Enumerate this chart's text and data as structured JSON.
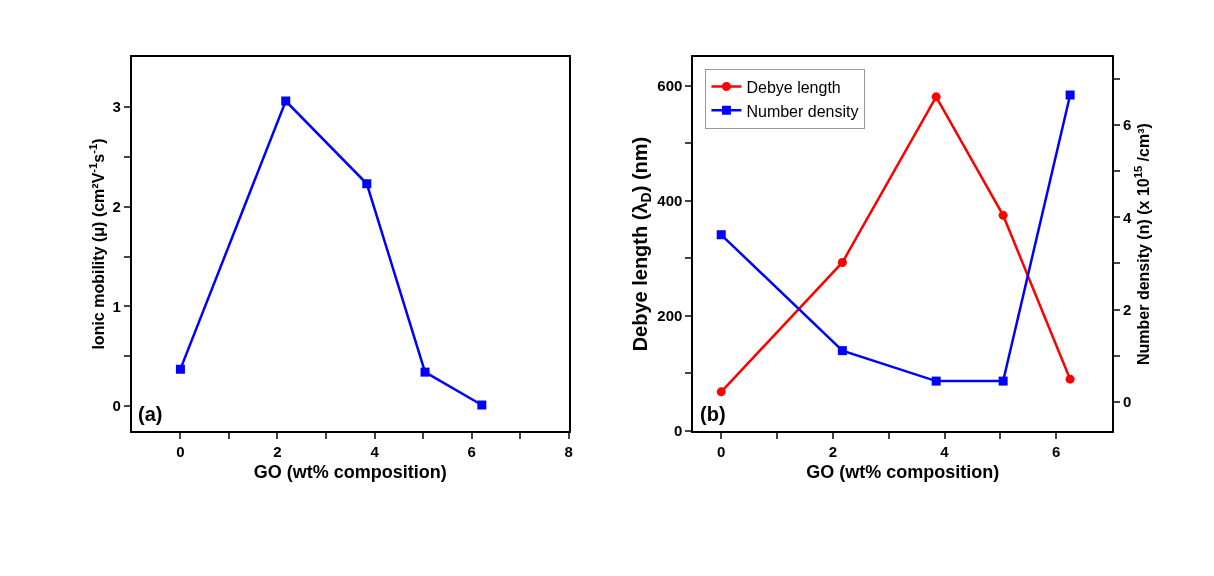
{
  "chart_data": [
    {
      "type": "line",
      "xlabel": "GO (wt% composition)",
      "ylabel": "Ionic mobility (μ) (cm²V$^{-1}$s$^{-1}$)",
      "annotations": [
        "(a)"
      ],
      "marker": "square",
      "line_style": "solid",
      "x": [
        0,
        2.17,
        3.84,
        5.04,
        6.21
      ],
      "series": [
        {
          "color": "#0000ff",
          "values": [
            0.37,
            3.06,
            2.23,
            0.34,
            0.01
          ]
        }
      ],
      "xlim": [
        -1,
        8
      ],
      "xticks": [
        0,
        {
          "value": 1,
          "label": null
        },
        2,
        {
          "value": 3,
          "label": null
        },
        4,
        {
          "value": 5,
          "label": null
        },
        6,
        {
          "value": 7,
          "label": null
        },
        8
      ],
      "ylim": [
        -0.25,
        3.5
      ],
      "yticks": [
        0,
        {
          "value": 0.5,
          "label": null
        },
        1,
        {
          "value": 1.5,
          "label": null
        },
        2,
        {
          "value": 2.5,
          "label": null
        },
        3
      ]
    },
    {
      "type": "line",
      "xlabel": "GO (wt% composition)",
      "ylabel": "Debye length (λ$_{D}$) (nm)",
      "y2label": "Number density (n) (x 10$^{15}$ /cm³)",
      "annotations": [
        "(b)"
      ],
      "line_style": "solid",
      "legend": "top left",
      "x": [
        0,
        2.17,
        3.85,
        5.05,
        6.25
      ],
      "series": [
        {
          "name": "Debye length",
          "color": "#ff0000",
          "marker": "circle",
          "values": [
            68,
            293,
            581,
            375,
            90
          ]
        },
        {
          "name": "Number density",
          "color": "#0000ff",
          "marker": "square",
          "axis": "y2",
          "values": [
            3.62,
            1.11,
            0.45,
            0.45,
            6.65
          ]
        }
      ],
      "xlim": [
        -0.5,
        7
      ],
      "xticks": [
        0,
        {
          "value": 1,
          "label": null
        },
        2,
        {
          "value": 3,
          "label": null
        },
        4,
        {
          "value": 5,
          "label": null
        },
        6
      ],
      "ylim": [
        0,
        650
      ],
      "yticks": [
        0,
        {
          "value": 100,
          "label": null
        },
        200,
        {
          "value": 300,
          "label": null
        },
        400,
        {
          "value": 500,
          "label": null
        },
        600
      ],
      "y2lim": [
        -0.63,
        7.47
      ],
      "y2ticks": [
        0,
        {
          "value": 1,
          "label": null
        },
        2,
        {
          "value": 3,
          "label": null
        },
        4,
        {
          "value": 5,
          "label": null
        },
        6,
        {
          "value": 7,
          "label": null
        }
      ]
    }
  ]
}
